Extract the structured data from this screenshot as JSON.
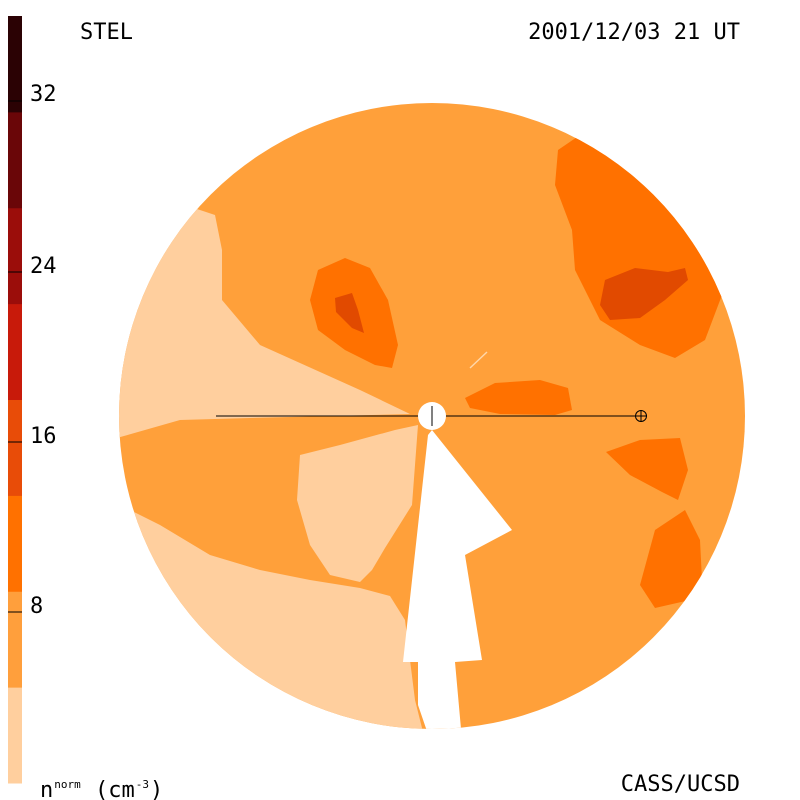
{
  "header": {
    "instrument": "STEL",
    "timestamp": "2001/12/03 21 UT"
  },
  "footer": {
    "credit": "CASS/UCSD",
    "units_symbol": "n",
    "units_sup": "norm",
    "units_text": " (cm",
    "units_exp": "-3",
    "units_close": ")"
  },
  "colorbar": {
    "ticks": [
      "32",
      "24",
      "16",
      "8"
    ],
    "colors": [
      "#ffcf9e",
      "#ff9f3c",
      "#ff7100",
      "#e84c08",
      "#c81a0a",
      "#9b0d0a",
      "#6a0608",
      "#2b0204"
    ]
  },
  "map": {
    "background_color": "#ffa03a",
    "region_colors": {
      "low": "#ffcf9e",
      "medium": "#ff9f3c",
      "high": "#ff7100",
      "peak": "#e14a00",
      "max": "#c81a0a"
    },
    "center_marker": "sun",
    "earth_marker": "earth"
  }
}
